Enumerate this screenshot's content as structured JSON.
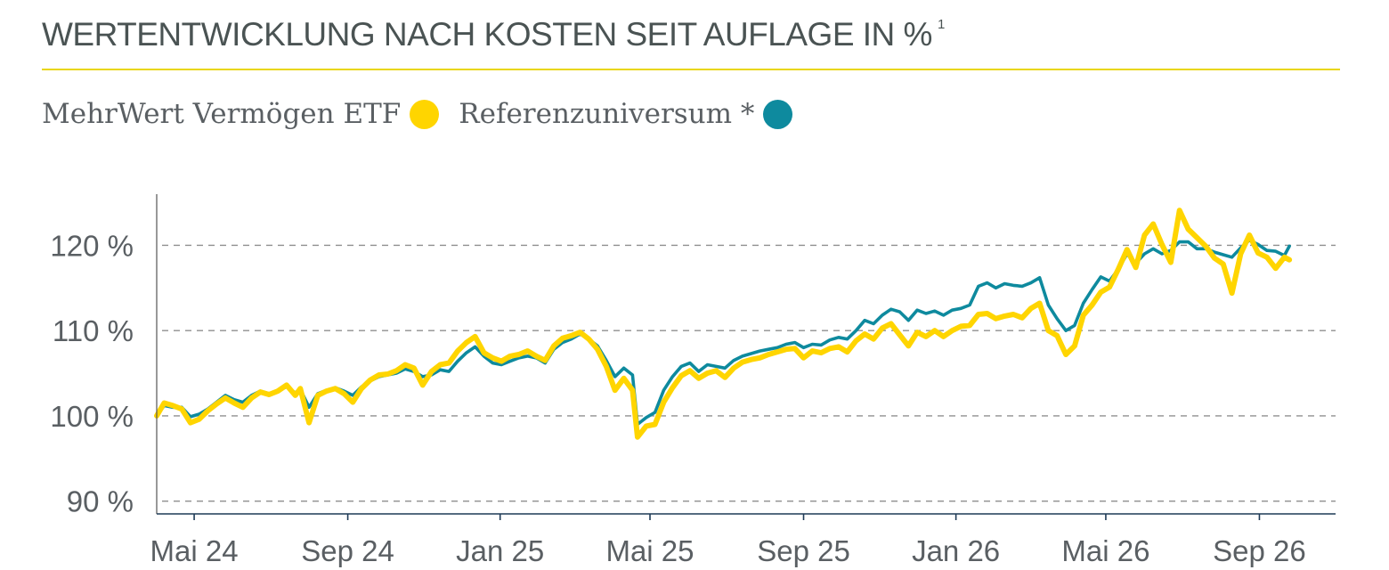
{
  "title": "WERTENTWICKLUNG NACH KOSTEN SEIT AUFLAGE IN %",
  "title_footnote": "1",
  "legend": [
    {
      "label": "MehrWert Vermögen ETF",
      "color": "#ffd500"
    },
    {
      "label": "Referenzuniversum *",
      "color": "#0e8a9e"
    }
  ],
  "chart_data": {
    "type": "line",
    "title": "WERTENTWICKLUNG NACH KOSTEN SEIT AUFLAGE IN %",
    "xlabel": "",
    "ylabel": "",
    "x_ticks": [
      "Mai 24",
      "Sep 24",
      "Jan 25",
      "Mai 25",
      "Sep 25",
      "Jan 26",
      "Mai 26",
      "Sep 26"
    ],
    "y_ticks": [
      {
        "value": 90,
        "label": "90 %"
      },
      {
        "value": 100,
        "label": "100 %"
      },
      {
        "value": 110,
        "label": "110 %"
      },
      {
        "value": 120,
        "label": "120 %"
      }
    ],
    "xlim": [
      "2024-04-01",
      "2026-11-01"
    ],
    "ylim": [
      88.5,
      126
    ],
    "grid": "horizontal dashed",
    "legend_position": "top-left",
    "series": [
      {
        "name": "MehrWert Vermögen ETF",
        "color": "#ffd500",
        "points": [
          [
            "2024-04-01",
            100.0
          ],
          [
            "2024-04-07",
            101.5
          ],
          [
            "2024-04-14",
            101.2
          ],
          [
            "2024-04-21",
            100.8
          ],
          [
            "2024-04-28",
            99.2
          ],
          [
            "2024-05-05",
            99.6
          ],
          [
            "2024-05-12",
            100.6
          ],
          [
            "2024-05-19",
            101.4
          ],
          [
            "2024-05-26",
            102.1
          ],
          [
            "2024-06-02",
            101.5
          ],
          [
            "2024-06-09",
            101.0
          ],
          [
            "2024-06-16",
            102.1
          ],
          [
            "2024-06-23",
            102.8
          ],
          [
            "2024-06-30",
            102.5
          ],
          [
            "2024-07-07",
            102.9
          ],
          [
            "2024-07-14",
            103.6
          ],
          [
            "2024-07-21",
            102.4
          ],
          [
            "2024-07-25",
            103.2
          ],
          [
            "2024-08-01",
            99.2
          ],
          [
            "2024-08-08",
            102.4
          ],
          [
            "2024-08-15",
            102.9
          ],
          [
            "2024-08-22",
            103.2
          ],
          [
            "2024-08-29",
            102.6
          ],
          [
            "2024-09-05",
            101.6
          ],
          [
            "2024-09-12",
            103.2
          ],
          [
            "2024-09-19",
            104.2
          ],
          [
            "2024-09-26",
            104.8
          ],
          [
            "2024-10-03",
            104.9
          ],
          [
            "2024-10-10",
            105.3
          ],
          [
            "2024-10-17",
            106.0
          ],
          [
            "2024-10-24",
            105.6
          ],
          [
            "2024-10-31",
            103.6
          ],
          [
            "2024-11-07",
            105.2
          ],
          [
            "2024-11-14",
            106.0
          ],
          [
            "2024-11-21",
            106.2
          ],
          [
            "2024-11-28",
            107.6
          ],
          [
            "2024-12-05",
            108.6
          ],
          [
            "2024-12-12",
            109.3
          ],
          [
            "2024-12-19",
            107.4
          ],
          [
            "2024-12-26",
            106.8
          ],
          [
            "2025-01-02",
            106.4
          ],
          [
            "2025-01-09",
            107.0
          ],
          [
            "2025-01-16",
            107.2
          ],
          [
            "2025-01-23",
            107.6
          ],
          [
            "2025-01-30",
            107.0
          ],
          [
            "2025-02-06",
            106.5
          ],
          [
            "2025-02-13",
            108.2
          ],
          [
            "2025-02-20",
            109.1
          ],
          [
            "2025-02-27",
            109.4
          ],
          [
            "2025-03-06",
            109.8
          ],
          [
            "2025-03-13",
            109.0
          ],
          [
            "2025-03-20",
            107.8
          ],
          [
            "2025-03-27",
            105.8
          ],
          [
            "2025-04-03",
            103.0
          ],
          [
            "2025-04-10",
            104.4
          ],
          [
            "2025-04-17",
            103.0
          ],
          [
            "2025-04-21",
            97.5
          ],
          [
            "2025-04-28",
            98.8
          ],
          [
            "2025-05-05",
            99.0
          ],
          [
            "2025-05-12",
            101.6
          ],
          [
            "2025-05-19",
            103.3
          ],
          [
            "2025-05-26",
            104.7
          ],
          [
            "2025-06-02",
            105.3
          ],
          [
            "2025-06-09",
            104.4
          ],
          [
            "2025-06-16",
            105.0
          ],
          [
            "2025-06-23",
            105.3
          ],
          [
            "2025-06-30",
            104.5
          ],
          [
            "2025-07-07",
            105.6
          ],
          [
            "2025-07-14",
            106.3
          ],
          [
            "2025-07-21",
            106.6
          ],
          [
            "2025-07-28",
            106.8
          ],
          [
            "2025-08-04",
            107.2
          ],
          [
            "2025-08-11",
            107.5
          ],
          [
            "2025-08-18",
            107.8
          ],
          [
            "2025-08-25",
            107.9
          ],
          [
            "2025-09-01",
            106.8
          ],
          [
            "2025-09-08",
            107.6
          ],
          [
            "2025-09-15",
            107.4
          ],
          [
            "2025-09-22",
            107.9
          ],
          [
            "2025-09-29",
            108.1
          ],
          [
            "2025-10-06",
            107.5
          ],
          [
            "2025-10-13",
            108.8
          ],
          [
            "2025-10-20",
            109.6
          ],
          [
            "2025-10-27",
            109.0
          ],
          [
            "2025-11-03",
            110.3
          ],
          [
            "2025-11-10",
            110.8
          ],
          [
            "2025-11-17",
            109.5
          ],
          [
            "2025-11-24",
            108.2
          ],
          [
            "2025-12-01",
            109.8
          ],
          [
            "2025-12-08",
            109.3
          ],
          [
            "2025-12-15",
            110.0
          ],
          [
            "2025-12-22",
            109.3
          ],
          [
            "2025-12-29",
            110.0
          ],
          [
            "2026-01-05",
            110.5
          ],
          [
            "2026-01-12",
            110.6
          ],
          [
            "2026-01-19",
            111.9
          ],
          [
            "2026-01-26",
            112.0
          ],
          [
            "2026-02-02",
            111.4
          ],
          [
            "2026-02-09",
            111.7
          ],
          [
            "2026-02-16",
            111.9
          ],
          [
            "2026-02-23",
            111.5
          ],
          [
            "2026-03-02",
            112.6
          ],
          [
            "2026-03-09",
            113.2
          ],
          [
            "2026-03-16",
            110.0
          ],
          [
            "2026-03-23",
            109.4
          ],
          [
            "2026-03-30",
            107.2
          ],
          [
            "2026-04-06",
            108.2
          ],
          [
            "2026-04-13",
            111.8
          ],
          [
            "2026-04-20",
            113.0
          ],
          [
            "2026-04-27",
            114.5
          ],
          [
            "2026-05-04",
            115.1
          ],
          [
            "2026-05-11",
            117.2
          ],
          [
            "2026-05-18",
            119.5
          ],
          [
            "2026-05-25",
            117.4
          ],
          [
            "2026-06-01",
            121.2
          ],
          [
            "2026-06-08",
            122.5
          ],
          [
            "2026-06-15",
            120.1
          ],
          [
            "2026-06-22",
            118.0
          ],
          [
            "2026-06-29",
            124.1
          ],
          [
            "2026-07-06",
            121.9
          ],
          [
            "2026-07-13",
            120.9
          ],
          [
            "2026-07-20",
            119.9
          ],
          [
            "2026-07-27",
            118.5
          ],
          [
            "2026-08-03",
            117.8
          ],
          [
            "2026-08-10",
            114.4
          ],
          [
            "2026-08-17",
            119.0
          ],
          [
            "2026-08-24",
            121.2
          ],
          [
            "2026-08-31",
            119.1
          ],
          [
            "2026-09-07",
            118.6
          ],
          [
            "2026-09-14",
            117.3
          ],
          [
            "2026-09-21",
            118.6
          ],
          [
            "2026-09-25",
            118.3
          ]
        ]
      },
      {
        "name": "Referenzuniversum *",
        "color": "#0e8a9e",
        "points": [
          [
            "2024-04-01",
            100.0
          ],
          [
            "2024-04-07",
            101.2
          ],
          [
            "2024-04-14",
            101.0
          ],
          [
            "2024-04-21",
            101.0
          ],
          [
            "2024-04-28",
            99.9
          ],
          [
            "2024-05-05",
            100.2
          ],
          [
            "2024-05-12",
            100.8
          ],
          [
            "2024-05-19",
            101.6
          ],
          [
            "2024-05-26",
            102.4
          ],
          [
            "2024-06-02",
            101.9
          ],
          [
            "2024-06-09",
            101.6
          ],
          [
            "2024-06-16",
            102.4
          ],
          [
            "2024-06-23",
            102.9
          ],
          [
            "2024-06-30",
            102.6
          ],
          [
            "2024-07-07",
            103.0
          ],
          [
            "2024-07-14",
            103.4
          ],
          [
            "2024-07-21",
            102.7
          ],
          [
            "2024-07-25",
            103.1
          ],
          [
            "2024-08-01",
            101.0
          ],
          [
            "2024-08-08",
            102.6
          ],
          [
            "2024-08-15",
            103.0
          ],
          [
            "2024-08-22",
            103.3
          ],
          [
            "2024-08-29",
            102.9
          ],
          [
            "2024-09-05",
            102.4
          ],
          [
            "2024-09-12",
            103.4
          ],
          [
            "2024-09-19",
            104.1
          ],
          [
            "2024-09-26",
            104.6
          ],
          [
            "2024-10-03",
            104.8
          ],
          [
            "2024-10-10",
            105.0
          ],
          [
            "2024-10-17",
            105.5
          ],
          [
            "2024-10-24",
            105.2
          ],
          [
            "2024-10-31",
            104.6
          ],
          [
            "2024-11-07",
            104.8
          ],
          [
            "2024-11-14",
            105.4
          ],
          [
            "2024-11-21",
            105.2
          ],
          [
            "2024-11-28",
            106.4
          ],
          [
            "2024-12-05",
            107.4
          ],
          [
            "2024-12-12",
            108.1
          ],
          [
            "2024-12-19",
            107.0
          ],
          [
            "2024-12-26",
            106.2
          ],
          [
            "2025-01-02",
            106.0
          ],
          [
            "2025-01-09",
            106.4
          ],
          [
            "2025-01-16",
            106.8
          ],
          [
            "2025-01-23",
            107.0
          ],
          [
            "2025-01-30",
            106.8
          ],
          [
            "2025-02-06",
            106.2
          ],
          [
            "2025-02-13",
            107.8
          ],
          [
            "2025-02-20",
            108.6
          ],
          [
            "2025-02-27",
            109.0
          ],
          [
            "2025-03-06",
            109.6
          ],
          [
            "2025-03-13",
            109.0
          ],
          [
            "2025-03-20",
            108.2
          ],
          [
            "2025-03-27",
            106.5
          ],
          [
            "2025-04-03",
            104.6
          ],
          [
            "2025-04-10",
            105.6
          ],
          [
            "2025-04-17",
            104.8
          ],
          [
            "2025-04-21",
            99.0
          ],
          [
            "2025-04-28",
            99.8
          ],
          [
            "2025-05-05",
            100.4
          ],
          [
            "2025-05-12",
            103.0
          ],
          [
            "2025-05-19",
            104.6
          ],
          [
            "2025-05-26",
            105.8
          ],
          [
            "2025-06-02",
            106.2
          ],
          [
            "2025-06-09",
            105.2
          ],
          [
            "2025-06-16",
            106.0
          ],
          [
            "2025-06-23",
            105.8
          ],
          [
            "2025-06-30",
            105.6
          ],
          [
            "2025-07-07",
            106.5
          ],
          [
            "2025-07-14",
            107.0
          ],
          [
            "2025-07-21",
            107.3
          ],
          [
            "2025-07-28",
            107.6
          ],
          [
            "2025-08-04",
            107.8
          ],
          [
            "2025-08-11",
            108.0
          ],
          [
            "2025-08-18",
            108.4
          ],
          [
            "2025-08-25",
            108.6
          ],
          [
            "2025-09-01",
            108.0
          ],
          [
            "2025-09-08",
            108.4
          ],
          [
            "2025-09-15",
            108.3
          ],
          [
            "2025-09-22",
            108.9
          ],
          [
            "2025-09-29",
            109.2
          ],
          [
            "2025-10-06",
            109.0
          ],
          [
            "2025-10-13",
            110.0
          ],
          [
            "2025-10-20",
            111.2
          ],
          [
            "2025-10-27",
            110.8
          ],
          [
            "2025-11-03",
            111.8
          ],
          [
            "2025-11-10",
            112.5
          ],
          [
            "2025-11-17",
            112.2
          ],
          [
            "2025-11-24",
            111.2
          ],
          [
            "2025-12-01",
            112.4
          ],
          [
            "2025-12-08",
            112.0
          ],
          [
            "2025-12-15",
            112.3
          ],
          [
            "2025-12-22",
            111.8
          ],
          [
            "2025-12-29",
            112.4
          ],
          [
            "2026-01-05",
            112.6
          ],
          [
            "2026-01-12",
            113.0
          ],
          [
            "2026-01-19",
            115.2
          ],
          [
            "2026-01-26",
            115.6
          ],
          [
            "2026-02-02",
            115.0
          ],
          [
            "2026-02-09",
            115.5
          ],
          [
            "2026-02-16",
            115.3
          ],
          [
            "2026-02-23",
            115.2
          ],
          [
            "2026-03-02",
            115.6
          ],
          [
            "2026-03-09",
            116.2
          ],
          [
            "2026-03-16",
            113.0
          ],
          [
            "2026-03-23",
            111.4
          ],
          [
            "2026-03-30",
            110.0
          ],
          [
            "2026-04-06",
            110.6
          ],
          [
            "2026-04-13",
            113.2
          ],
          [
            "2026-04-20",
            114.8
          ],
          [
            "2026-04-27",
            116.3
          ],
          [
            "2026-05-04",
            115.8
          ],
          [
            "2026-05-11",
            117.2
          ],
          [
            "2026-05-18",
            119.0
          ],
          [
            "2026-05-25",
            117.9
          ],
          [
            "2026-06-01",
            119.0
          ],
          [
            "2026-06-08",
            119.6
          ],
          [
            "2026-06-15",
            119.0
          ],
          [
            "2026-06-22",
            119.4
          ],
          [
            "2026-06-29",
            120.4
          ],
          [
            "2026-07-06",
            120.4
          ],
          [
            "2026-07-13",
            119.6
          ],
          [
            "2026-07-20",
            119.6
          ],
          [
            "2026-07-27",
            119.2
          ],
          [
            "2026-08-03",
            118.9
          ],
          [
            "2026-08-10",
            118.6
          ],
          [
            "2026-08-17",
            119.7
          ],
          [
            "2026-08-24",
            120.6
          ],
          [
            "2026-08-31",
            120.1
          ],
          [
            "2026-09-07",
            119.4
          ],
          [
            "2026-09-14",
            119.3
          ],
          [
            "2026-09-21",
            118.8
          ],
          [
            "2026-09-25",
            119.9
          ]
        ]
      }
    ]
  }
}
